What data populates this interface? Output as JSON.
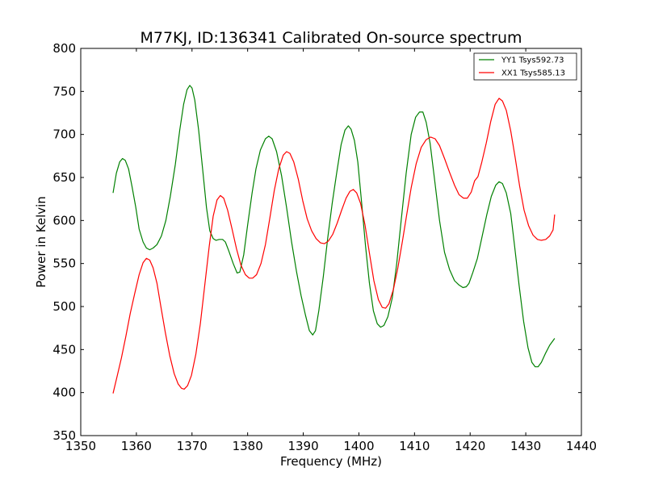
{
  "chart_data": {
    "type": "line",
    "title": "M77KJ, ID:136341 Calibrated On-source spectrum",
    "xlabel": "Frequency (MHz)",
    "ylabel": "Power in Kelvin",
    "xlim": [
      1350,
      1440
    ],
    "ylim": [
      350,
      800
    ],
    "xticks": [
      1350,
      1360,
      1370,
      1380,
      1390,
      1400,
      1410,
      1420,
      1430,
      1440
    ],
    "yticks": [
      350,
      400,
      450,
      500,
      550,
      600,
      650,
      700,
      750,
      800
    ],
    "grid": false,
    "legend_position": "top-right",
    "series": [
      {
        "name": "YY1 Tsys592.73",
        "color": "#008000",
        "points": [
          [
            1355.8,
            632
          ],
          [
            1356.4,
            655
          ],
          [
            1357.0,
            668
          ],
          [
            1357.5,
            672
          ],
          [
            1358.0,
            670
          ],
          [
            1358.6,
            660
          ],
          [
            1359.2,
            640
          ],
          [
            1359.9,
            615
          ],
          [
            1360.5,
            590
          ],
          [
            1361.2,
            575
          ],
          [
            1361.8,
            568
          ],
          [
            1362.4,
            566
          ],
          [
            1363.0,
            568
          ],
          [
            1363.7,
            572
          ],
          [
            1364.5,
            582
          ],
          [
            1365.3,
            600
          ],
          [
            1366.1,
            628
          ],
          [
            1367.0,
            665
          ],
          [
            1367.8,
            705
          ],
          [
            1368.5,
            735
          ],
          [
            1369.1,
            752
          ],
          [
            1369.6,
            757
          ],
          [
            1370.0,
            754
          ],
          [
            1370.5,
            740
          ],
          [
            1371.2,
            705
          ],
          [
            1371.9,
            660
          ],
          [
            1372.6,
            615
          ],
          [
            1373.2,
            588
          ],
          [
            1373.8,
            579
          ],
          [
            1374.3,
            577
          ],
          [
            1374.9,
            578
          ],
          [
            1375.5,
            578
          ],
          [
            1376.0,
            575
          ],
          [
            1376.6,
            565
          ],
          [
            1377.4,
            550
          ],
          [
            1378.1,
            539
          ],
          [
            1378.6,
            540
          ],
          [
            1379.3,
            560
          ],
          [
            1380.0,
            595
          ],
          [
            1380.8,
            632
          ],
          [
            1381.5,
            660
          ],
          [
            1382.3,
            682
          ],
          [
            1383.2,
            695
          ],
          [
            1383.8,
            698
          ],
          [
            1384.4,
            695
          ],
          [
            1385.2,
            680
          ],
          [
            1386.1,
            652
          ],
          [
            1387.0,
            615
          ],
          [
            1387.9,
            575
          ],
          [
            1388.8,
            540
          ],
          [
            1389.6,
            513
          ],
          [
            1390.4,
            490
          ],
          [
            1391.1,
            472
          ],
          [
            1391.7,
            467
          ],
          [
            1392.2,
            472
          ],
          [
            1392.8,
            495
          ],
          [
            1393.6,
            535
          ],
          [
            1394.4,
            580
          ],
          [
            1395.2,
            620
          ],
          [
            1396.0,
            655
          ],
          [
            1396.8,
            688
          ],
          [
            1397.5,
            705
          ],
          [
            1398.1,
            710
          ],
          [
            1398.6,
            706
          ],
          [
            1399.2,
            693
          ],
          [
            1399.8,
            668
          ],
          [
            1400.5,
            620
          ],
          [
            1401.2,
            570
          ],
          [
            1401.9,
            527
          ],
          [
            1402.6,
            495
          ],
          [
            1403.3,
            480
          ],
          [
            1403.9,
            476
          ],
          [
            1404.5,
            478
          ],
          [
            1405.2,
            488
          ],
          [
            1406.0,
            510
          ],
          [
            1406.8,
            550
          ],
          [
            1407.6,
            600
          ],
          [
            1408.5,
            655
          ],
          [
            1409.4,
            700
          ],
          [
            1410.2,
            720
          ],
          [
            1410.9,
            726
          ],
          [
            1411.5,
            726
          ],
          [
            1412.1,
            714
          ],
          [
            1412.8,
            690
          ],
          [
            1413.6,
            648
          ],
          [
            1414.5,
            600
          ],
          [
            1415.4,
            563
          ],
          [
            1416.3,
            543
          ],
          [
            1417.2,
            530
          ],
          [
            1418.0,
            525
          ],
          [
            1418.7,
            522
          ],
          [
            1419.3,
            523
          ],
          [
            1419.8,
            527
          ],
          [
            1420.5,
            540
          ],
          [
            1421.3,
            556
          ],
          [
            1422.1,
            580
          ],
          [
            1423.0,
            607
          ],
          [
            1423.8,
            628
          ],
          [
            1424.6,
            641
          ],
          [
            1425.2,
            645
          ],
          [
            1425.8,
            643
          ],
          [
            1426.5,
            632
          ],
          [
            1427.3,
            608
          ],
          [
            1428.0,
            570
          ],
          [
            1428.8,
            525
          ],
          [
            1429.6,
            483
          ],
          [
            1430.4,
            452
          ],
          [
            1431.1,
            435
          ],
          [
            1431.7,
            430
          ],
          [
            1432.2,
            430
          ],
          [
            1432.8,
            435
          ],
          [
            1433.5,
            445
          ],
          [
            1434.3,
            455
          ],
          [
            1435.2,
            463
          ]
        ]
      },
      {
        "name": "XX1 Tsys585.13",
        "color": "#ff0000",
        "points": [
          [
            1355.8,
            399
          ],
          [
            1356.5,
            418
          ],
          [
            1357.3,
            440
          ],
          [
            1358.1,
            465
          ],
          [
            1358.9,
            492
          ],
          [
            1359.7,
            515
          ],
          [
            1360.5,
            537
          ],
          [
            1361.2,
            551
          ],
          [
            1361.8,
            556
          ],
          [
            1362.4,
            554
          ],
          [
            1363.0,
            545
          ],
          [
            1363.7,
            527
          ],
          [
            1364.4,
            500
          ],
          [
            1365.2,
            470
          ],
          [
            1366.0,
            443
          ],
          [
            1366.8,
            422
          ],
          [
            1367.5,
            410
          ],
          [
            1368.1,
            405
          ],
          [
            1368.6,
            404
          ],
          [
            1369.2,
            408
          ],
          [
            1369.9,
            420
          ],
          [
            1370.7,
            445
          ],
          [
            1371.5,
            480
          ],
          [
            1372.3,
            525
          ],
          [
            1373.1,
            570
          ],
          [
            1373.8,
            605
          ],
          [
            1374.5,
            624
          ],
          [
            1375.1,
            629
          ],
          [
            1375.7,
            626
          ],
          [
            1376.4,
            612
          ],
          [
            1377.2,
            590
          ],
          [
            1378.0,
            567
          ],
          [
            1378.8,
            548
          ],
          [
            1379.6,
            537
          ],
          [
            1380.3,
            533
          ],
          [
            1380.9,
            533
          ],
          [
            1381.6,
            537
          ],
          [
            1382.4,
            550
          ],
          [
            1383.2,
            572
          ],
          [
            1384.0,
            603
          ],
          [
            1384.8,
            635
          ],
          [
            1385.6,
            660
          ],
          [
            1386.4,
            676
          ],
          [
            1387.0,
            680
          ],
          [
            1387.6,
            678
          ],
          [
            1388.3,
            668
          ],
          [
            1389.1,
            648
          ],
          [
            1389.9,
            623
          ],
          [
            1390.7,
            602
          ],
          [
            1391.5,
            588
          ],
          [
            1392.3,
            579
          ],
          [
            1393.1,
            574
          ],
          [
            1393.8,
            573
          ],
          [
            1394.5,
            576
          ],
          [
            1395.3,
            584
          ],
          [
            1396.1,
            597
          ],
          [
            1396.9,
            612
          ],
          [
            1397.7,
            626
          ],
          [
            1398.4,
            634
          ],
          [
            1399.0,
            636
          ],
          [
            1399.6,
            632
          ],
          [
            1400.3,
            620
          ],
          [
            1401.1,
            595
          ],
          [
            1401.9,
            562
          ],
          [
            1402.7,
            530
          ],
          [
            1403.5,
            508
          ],
          [
            1404.2,
            499
          ],
          [
            1404.8,
            498
          ],
          [
            1405.4,
            503
          ],
          [
            1406.2,
            520
          ],
          [
            1407.0,
            545
          ],
          [
            1407.8,
            575
          ],
          [
            1408.6,
            607
          ],
          [
            1409.4,
            638
          ],
          [
            1410.3,
            666
          ],
          [
            1411.2,
            685
          ],
          [
            1412.1,
            694
          ],
          [
            1412.9,
            697
          ],
          [
            1413.7,
            695
          ],
          [
            1414.5,
            687
          ],
          [
            1415.4,
            672
          ],
          [
            1416.3,
            656
          ],
          [
            1417.2,
            641
          ],
          [
            1418.0,
            630
          ],
          [
            1418.8,
            626
          ],
          [
            1419.5,
            626
          ],
          [
            1420.2,
            633
          ],
          [
            1420.8,
            646
          ],
          [
            1421.4,
            651
          ],
          [
            1422.1,
            668
          ],
          [
            1422.9,
            690
          ],
          [
            1423.7,
            715
          ],
          [
            1424.5,
            735
          ],
          [
            1425.2,
            742
          ],
          [
            1425.8,
            739
          ],
          [
            1426.5,
            728
          ],
          [
            1427.3,
            704
          ],
          [
            1428.1,
            673
          ],
          [
            1428.9,
            640
          ],
          [
            1429.7,
            612
          ],
          [
            1430.5,
            594
          ],
          [
            1431.3,
            583
          ],
          [
            1432.1,
            578
          ],
          [
            1432.8,
            577
          ],
          [
            1433.6,
            578
          ],
          [
            1434.3,
            582
          ],
          [
            1434.9,
            589
          ],
          [
            1435.2,
            607
          ]
        ]
      }
    ]
  }
}
